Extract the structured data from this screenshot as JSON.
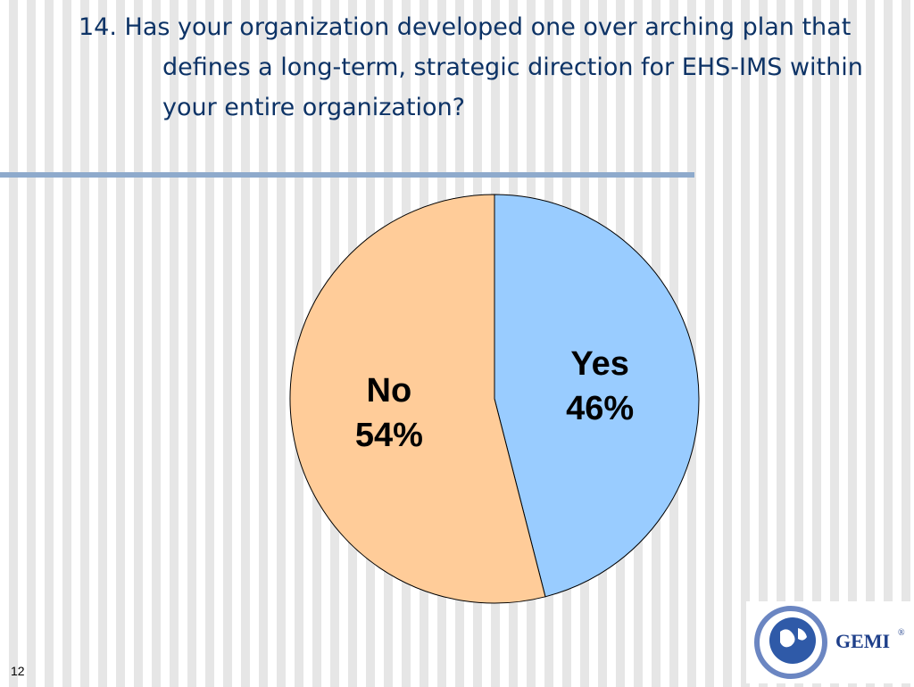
{
  "chart_data": {
    "type": "pie",
    "title": "14. Has your organization developed one over arching plan that defines a long-term, strategic direction for EHS-IMS within your entire organization?",
    "categories": [
      "Yes",
      "No"
    ],
    "values": [
      46,
      54
    ],
    "value_labels": [
      "46%",
      "54%"
    ],
    "colors": [
      "#99ccff",
      "#ffcc99"
    ]
  },
  "footer": {
    "page_number": "12",
    "logo": "GEMI",
    "logo_mark": "®"
  }
}
